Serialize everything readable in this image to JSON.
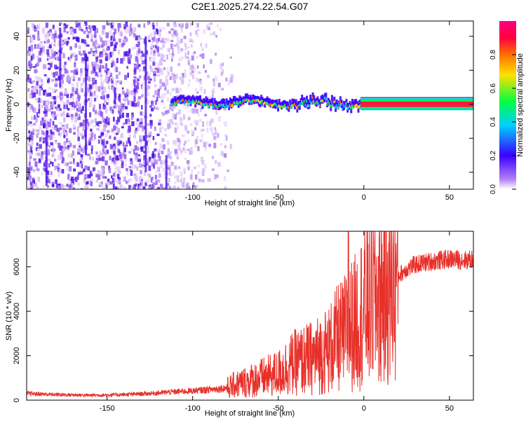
{
  "title": "C2E1.2025.274.22.54.G07",
  "chart_data": [
    {
      "type": "heatmap",
      "title": "C2E1.2025.274.22.54.G07",
      "xlabel": "Height of straight line (km)",
      "ylabel": "Frequency (Hz)",
      "xlim": [
        -197,
        64
      ],
      "ylim": [
        -50,
        49
      ],
      "xticks": [
        -150,
        -100,
        -50,
        0,
        50
      ],
      "yticks": [
        -40,
        -20,
        0,
        20,
        40
      ],
      "grid": false,
      "colorbar": {
        "label": "Normalized spectral amplitude",
        "range": [
          0,
          1
        ],
        "ticks": [
          "0.0",
          "0.2",
          "0.4",
          "0.6",
          "0.8"
        ],
        "colors": [
          "#ffffff",
          "#b27ff7",
          "#3b00ff",
          "#00d0ff",
          "#00ff40",
          "#ffe000",
          "#ff7000",
          "#ff0040",
          "#ff0080"
        ]
      },
      "features": {
        "noise_region_km": [
          -197,
          -88
        ],
        "signal_track_start_km": -113,
        "signal_track_freq_hz": 0,
        "stable_signal_start_km": -2
      }
    },
    {
      "type": "line",
      "xlabel": "Height of straight line (km)",
      "ylabel": "SNR (10 * v/v)",
      "xlim": [
        -197,
        64
      ],
      "ylim": [
        0,
        7600
      ],
      "xticks": [
        -150,
        -100,
        -50,
        0,
        50
      ],
      "yticks": [
        0,
        2000,
        4000,
        6000
      ],
      "grid": false,
      "series": [
        {
          "name": "SNR",
          "color": "#e8302a",
          "x": [
            -197,
            -180,
            -160,
            -140,
            -125,
            -110,
            -100,
            -90,
            -80,
            -75,
            -70,
            -60,
            -50,
            -45,
            -40,
            -35,
            -30,
            -25,
            -20,
            -15,
            -12,
            -10,
            -8,
            -5,
            0,
            5,
            10,
            15,
            20,
            25,
            30,
            40,
            50,
            60,
            64
          ],
          "y": [
            300,
            250,
            220,
            250,
            300,
            380,
            420,
            480,
            550,
            700,
            800,
            1000,
            1200,
            1500,
            1700,
            1800,
            1900,
            2100,
            2300,
            2800,
            2900,
            3200,
            3300,
            3500,
            4200,
            4600,
            4900,
            5200,
            5600,
            5900,
            6100,
            6250,
            6350,
            6300,
            6350
          ],
          "peak": {
            "x": -9,
            "y": 7600
          }
        }
      ]
    }
  ]
}
